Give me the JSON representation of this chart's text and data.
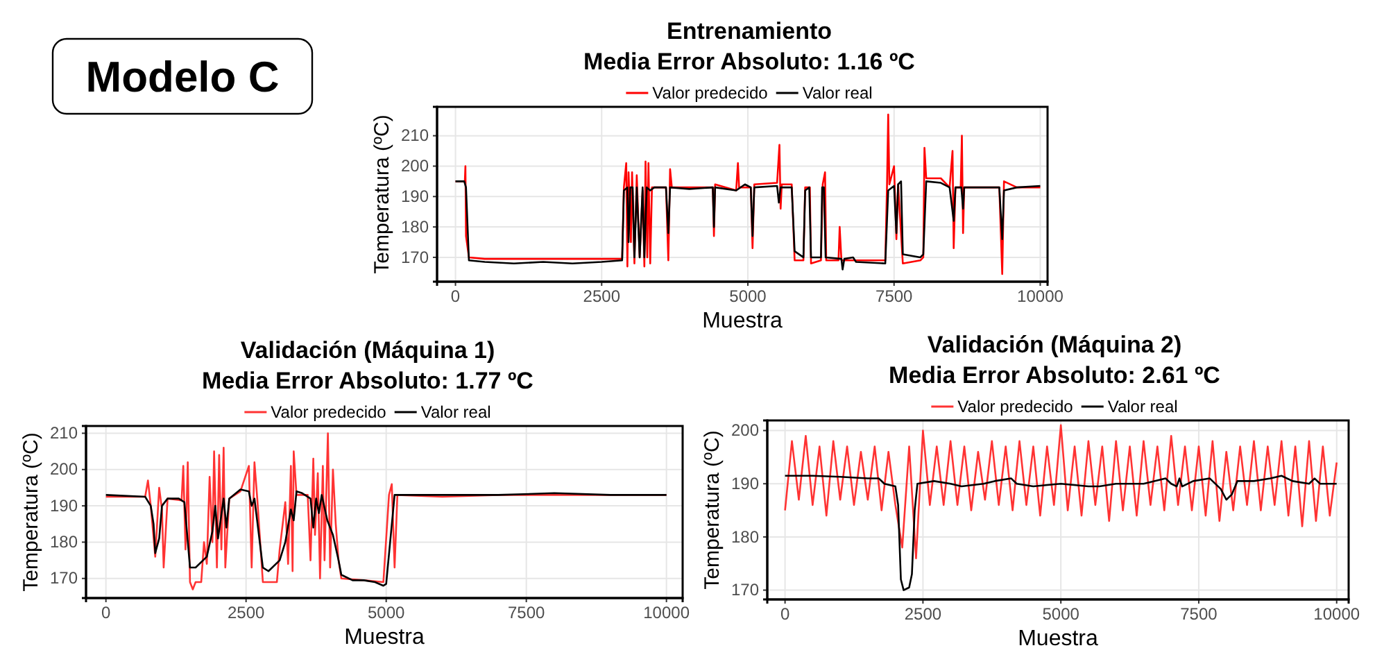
{
  "chart_data": [
    {
      "type": "other",
      "title": "Modelo C"
    },
    {
      "type": "line",
      "title": "Entrenamiento",
      "subtitle": "Media Error Absoluto: 1.16 ºC",
      "xlabel": "Muestra",
      "ylabel": "Temperatura (ºC)",
      "xlim": [
        -315,
        10125
      ],
      "ylim": [
        162,
        219.5
      ],
      "xticks": [
        0,
        2500,
        5000,
        7500,
        10000
      ],
      "yticks": [
        170,
        180,
        190,
        200,
        210
      ],
      "grid": true,
      "legend": "top",
      "line_style": "solid",
      "marker": "none",
      "series": [
        {
          "name": "Valor predecido",
          "color": "#ff0000",
          "x": [
            0,
            160,
            170,
            180,
            230,
            500,
            1500,
            2500,
            2850,
            2880,
            2920,
            2940,
            2960,
            3000,
            3020,
            3060,
            3100,
            3150,
            3200,
            3230,
            3250,
            3280,
            3300,
            3330,
            3360,
            3600,
            3640,
            3670,
            3700,
            4400,
            4420,
            4440,
            4800,
            4830,
            4850,
            5050,
            5080,
            5110,
            5500,
            5540,
            5560,
            5580,
            5750,
            5800,
            5950,
            5980,
            6060,
            6080,
            6250,
            6280,
            6320,
            6340,
            6550,
            6570,
            6600,
            7350,
            7380,
            7400,
            7420,
            7500,
            7540,
            7570,
            7650,
            7950,
            8000,
            8020,
            8050,
            8300,
            8450,
            8500,
            8520,
            8550,
            8640,
            8660,
            8680,
            8700,
            9300,
            9350,
            9380,
            9600,
            10000
          ],
          "values": [
            195,
            195,
            200,
            177,
            170,
            169.5,
            169.5,
            169.5,
            169.5,
            193,
            201,
            167,
            198,
            175,
            198,
            168,
            197,
            170,
            192,
            167,
            201.5,
            170,
            201,
            168,
            193,
            193,
            169,
            199,
            193,
            193,
            177,
            194,
            192,
            201,
            193,
            193,
            173,
            194,
            194.5,
            207,
            186,
            194,
            194,
            169,
            169,
            193,
            193,
            168,
            169,
            194,
            198,
            169,
            169,
            180,
            169,
            169,
            194,
            217,
            194,
            200,
            176,
            194,
            168,
            169,
            170,
            206,
            196,
            196,
            193,
            205,
            173,
            193,
            193,
            210,
            178,
            193,
            193,
            164.5,
            195,
            193,
            193
          ]
        },
        {
          "name": "Valor real",
          "color": "#000000",
          "x": [
            0,
            150,
            180,
            230,
            500,
            1000,
            1500,
            2000,
            2500,
            2850,
            2880,
            2940,
            2960,
            2990,
            3030,
            3060,
            3100,
            3150,
            3200,
            3230,
            3270,
            3330,
            3400,
            3600,
            3640,
            3670,
            4000,
            4400,
            4420,
            4440,
            4800,
            4950,
            5050,
            5080,
            5110,
            5500,
            5530,
            5560,
            5750,
            5800,
            5950,
            5980,
            6050,
            6080,
            6250,
            6270,
            6300,
            6330,
            6600,
            6620,
            6650,
            6800,
            6850,
            7350,
            7400,
            7500,
            7540,
            7570,
            7620,
            7650,
            7950,
            8000,
            8050,
            8300,
            8450,
            8520,
            8550,
            8650,
            8680,
            8700,
            9300,
            9350,
            9380,
            9600,
            10000
          ],
          "values": [
            195,
            195,
            193,
            169,
            168.5,
            168,
            168.5,
            168,
            168.5,
            169,
            192,
            193,
            175,
            193,
            193,
            170,
            193,
            170,
            193,
            170,
            193,
            192,
            193,
            193,
            178,
            193,
            192.5,
            193,
            180,
            193,
            192,
            194,
            193,
            177,
            193,
            193.5,
            188,
            193,
            193,
            172,
            170,
            192,
            193,
            170,
            170,
            193,
            193,
            170,
            169.5,
            166,
            169.5,
            170,
            168.5,
            168,
            192,
            193.5,
            178,
            194,
            195,
            171,
            170,
            171,
            195,
            194.5,
            193,
            182,
            193,
            193,
            186,
            193,
            193,
            176,
            192,
            193,
            193.5
          ]
        }
      ]
    },
    {
      "type": "line",
      "title": "Validación (Máquina 1)",
      "subtitle": "Media Error Absoluto: 1.77 ºC",
      "xlabel": "Muestra",
      "ylabel": "Temperatura (ºC)",
      "xlim": [
        -355,
        10289
      ],
      "ylim": [
        164.6,
        212
      ],
      "xticks": [
        0,
        2500,
        5000,
        7500,
        10000
      ],
      "yticks": [
        170,
        180,
        190,
        200,
        210
      ],
      "grid": true,
      "legend": "top",
      "line_style": "solid",
      "marker": "none",
      "series": [
        {
          "name": "Valor predecido",
          "color": "#ff3333",
          "x": [
            0,
            700,
            750,
            800,
            880,
            950,
            1000,
            1030,
            1100,
            1350,
            1380,
            1420,
            1460,
            1500,
            1550,
            1600,
            1700,
            1750,
            1800,
            1850,
            1900,
            1930,
            1980,
            2020,
            2060,
            2100,
            2130,
            2200,
            2400,
            2550,
            2600,
            2650,
            2700,
            2800,
            3050,
            3100,
            3200,
            3250,
            3300,
            3330,
            3350,
            3400,
            3600,
            3650,
            3700,
            3730,
            3780,
            3820,
            3870,
            3900,
            3960,
            4000,
            4050,
            4100,
            4150,
            4200,
            4600,
            4950,
            5050,
            5100,
            5150,
            5200,
            6000,
            7000,
            8000,
            9000,
            10000
          ],
          "values": [
            192.5,
            192.5,
            197,
            190,
            176,
            195,
            189,
            173,
            192,
            191.5,
            201,
            178,
            202,
            169,
            167,
            169,
            169,
            180,
            174,
            198,
            180,
            205,
            173,
            204,
            178,
            206,
            173,
            192,
            194,
            201,
            173,
            202,
            192,
            169,
            169,
            178,
            191,
            174,
            201,
            172,
            205,
            193,
            193,
            175,
            203,
            182,
            199,
            170,
            201,
            175,
            210,
            173,
            200,
            185,
            175,
            170,
            169.5,
            169,
            193,
            196,
            173,
            193,
            192.5,
            193,
            193,
            193,
            193
          ]
        },
        {
          "name": "Valor real",
          "color": "#000000",
          "x": [
            0,
            700,
            800,
            850,
            880,
            950,
            1000,
            1100,
            1300,
            1400,
            1450,
            1500,
            1600,
            1800,
            1900,
            1950,
            2000,
            2100,
            2150,
            2200,
            2400,
            2550,
            2600,
            2650,
            2800,
            2900,
            3100,
            3200,
            3300,
            3350,
            3400,
            3500,
            3650,
            3700,
            3750,
            3800,
            3850,
            3950,
            4050,
            4150,
            4200,
            4400,
            4600,
            4800,
            4950,
            5000,
            5150,
            6000,
            7000,
            8000,
            9000,
            10000
          ],
          "values": [
            193,
            192.5,
            190,
            185,
            177,
            181,
            190,
            192,
            192,
            191,
            182,
            173,
            173,
            176,
            183,
            190,
            181,
            192,
            184,
            192,
            194.5,
            194,
            190,
            192,
            173,
            172,
            175,
            180,
            189,
            186,
            194,
            193.5,
            192,
            184,
            192,
            188,
            193,
            186,
            182,
            175,
            171,
            169.5,
            169.5,
            169,
            168,
            168.5,
            193,
            193,
            193,
            193.5,
            193,
            193
          ]
        }
      ]
    },
    {
      "type": "line",
      "title": "Validación (Máquina 2)",
      "subtitle": "Media Error Absoluto: 2.61 ºC",
      "xlabel": "Muestra",
      "ylabel": "Temperatura (ºC)",
      "xlim": [
        -322,
        10217
      ],
      "ylim": [
        168.25,
        201.9
      ],
      "xticks": [
        0,
        2500,
        5000,
        7500,
        10000
      ],
      "yticks": [
        170,
        180,
        190,
        200
      ],
      "grid": true,
      "legend": "top",
      "line_style": "solid",
      "marker": "none",
      "series": [
        {
          "name": "Valor predecido",
          "color": "#ff3333",
          "x": [
            0,
            125,
            250,
            375,
            500,
            625,
            750,
            875,
            1000,
            1125,
            1250,
            1375,
            1500,
            1625,
            1750,
            1875,
            2000,
            2125,
            2250,
            2375,
            2500,
            2625,
            2750,
            2875,
            3000,
            3125,
            3250,
            3375,
            3500,
            3625,
            3750,
            3875,
            4000,
            4125,
            4250,
            4375,
            4500,
            4625,
            4750,
            4875,
            5000,
            5125,
            5250,
            5375,
            5500,
            5625,
            5750,
            5875,
            6000,
            6125,
            6250,
            6375,
            6500,
            6625,
            6750,
            6875,
            7000,
            7125,
            7250,
            7375,
            7500,
            7625,
            7750,
            7875,
            8000,
            8125,
            8250,
            8375,
            8500,
            8625,
            8750,
            8875,
            9000,
            9125,
            9250,
            9375,
            9500,
            9625,
            9750,
            9875,
            10000
          ],
          "values": [
            185,
            198,
            187,
            199,
            186,
            197,
            184,
            198,
            187,
            197,
            186,
            196,
            187,
            197,
            185,
            196,
            186,
            178,
            197,
            176,
            200,
            186,
            197,
            186,
            198,
            186,
            197,
            185,
            196,
            187,
            198,
            186,
            197,
            185,
            198,
            186,
            197,
            184,
            197,
            186,
            201,
            185,
            197,
            184,
            198,
            186,
            197,
            183,
            198,
            185,
            197,
            184,
            198,
            186,
            197,
            185,
            199,
            186,
            197,
            185,
            197,
            184,
            198,
            183,
            196,
            185,
            197,
            186,
            198,
            185,
            197,
            186,
            198,
            184,
            197,
            182,
            198,
            183,
            197,
            184,
            194
          ]
        },
        {
          "name": "Valor real",
          "color": "#000000",
          "x": [
            0,
            500,
            1000,
            1500,
            1700,
            1800,
            2000,
            2050,
            2100,
            2150,
            2250,
            2300,
            2350,
            2400,
            2700,
            3000,
            3200,
            3600,
            3800,
            4100,
            4200,
            4500,
            5000,
            5500,
            5700,
            6000,
            6500,
            6900,
            7000,
            7100,
            7150,
            7200,
            7400,
            7700,
            7900,
            8000,
            8100,
            8200,
            8500,
            8800,
            9000,
            9200,
            9500,
            9600,
            9700,
            10000
          ],
          "values": [
            191.5,
            191.5,
            191.3,
            191,
            191,
            190,
            189.5,
            186,
            172,
            170,
            170.5,
            173,
            185,
            190,
            190.5,
            190,
            189.5,
            190,
            190.5,
            191,
            190,
            189.5,
            190,
            189.5,
            189.5,
            190,
            190,
            191,
            190,
            189.5,
            191,
            189.5,
            190.5,
            191,
            189,
            187,
            188,
            190.5,
            190.5,
            191,
            191.5,
            190.5,
            190,
            191,
            190,
            190
          ]
        }
      ]
    }
  ]
}
